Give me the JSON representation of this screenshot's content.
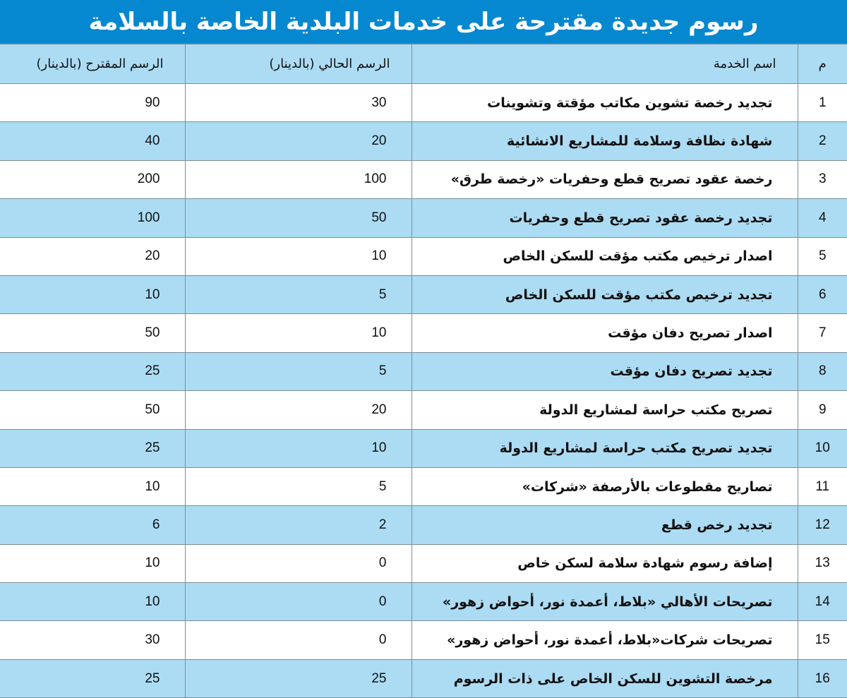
{
  "title": "رسوم جديدة مقترحة على خدمات البلدية الخاصة بالسلامة",
  "colors": {
    "title_bg": "#0588cf",
    "header_bg": "#acdcf3",
    "alt_row_bg": "#acdcf3"
  },
  "headers": {
    "number": "م",
    "service": "اسم الخدمة",
    "current_fee": "الرسم الحالي (بالدينار)",
    "proposed_fee": "الرسم المقترح (بالدينار)"
  },
  "rows": [
    {
      "n": "1",
      "service": "تجديد رخصة تشوين مكاتب مؤقتة وتشوينات",
      "current": "30",
      "proposed": "90"
    },
    {
      "n": "2",
      "service": "شهادة نظافة وسلامة للمشاريع الانشائية",
      "current": "20",
      "proposed": "40"
    },
    {
      "n": "3",
      "service": "رخصة عقود تصريح قطع وحفريات «رخصة طرق»",
      "current": "100",
      "proposed": "200"
    },
    {
      "n": "4",
      "service": "تجديد رخصة عقود تصريح قطع وحفريات",
      "current": "50",
      "proposed": "100"
    },
    {
      "n": "5",
      "service": "اصدار ترخيص مكتب مؤقت للسكن الخاص",
      "current": "10",
      "proposed": "20"
    },
    {
      "n": "6",
      "service": "تجديد ترخيص مكتب مؤقت للسكن الخاص",
      "current": "5",
      "proposed": "10"
    },
    {
      "n": "7",
      "service": "اصدار تصريح دفان مؤقت",
      "current": "10",
      "proposed": "50"
    },
    {
      "n": "8",
      "service": "تجديد تصريح دفان مؤقت",
      "current": "5",
      "proposed": "25"
    },
    {
      "n": "9",
      "service": "تصريح مكتب حراسة لمشاريع الدولة",
      "current": "20",
      "proposed": "50"
    },
    {
      "n": "10",
      "service": "تجديد تصريح مكتب حراسة لمشاريع الدولة",
      "current": "10",
      "proposed": "25"
    },
    {
      "n": "11",
      "service": "تصاريح مقطوعات بالأرصفة «شركات»",
      "current": "5",
      "proposed": "10"
    },
    {
      "n": "12",
      "service": "تجديد رخص قطع",
      "current": "2",
      "proposed": "6"
    },
    {
      "n": "13",
      "service": "إضافة رسوم شهادة سلامة لسكن خاص",
      "current": "0",
      "proposed": "10"
    },
    {
      "n": "14",
      "service": "تصريحات الأهالي «بلاط، أعمدة نور، أحواض زهور»",
      "current": "0",
      "proposed": "10"
    },
    {
      "n": "15",
      "service": "تصريحات شركات«بلاط، أعمدة نور، أحواض زهور»",
      "current": "0",
      "proposed": "30"
    },
    {
      "n": "16",
      "service": "مرخصة التشوين للسكن الخاص على ذات الرسوم",
      "current": "25",
      "proposed": "25"
    }
  ]
}
